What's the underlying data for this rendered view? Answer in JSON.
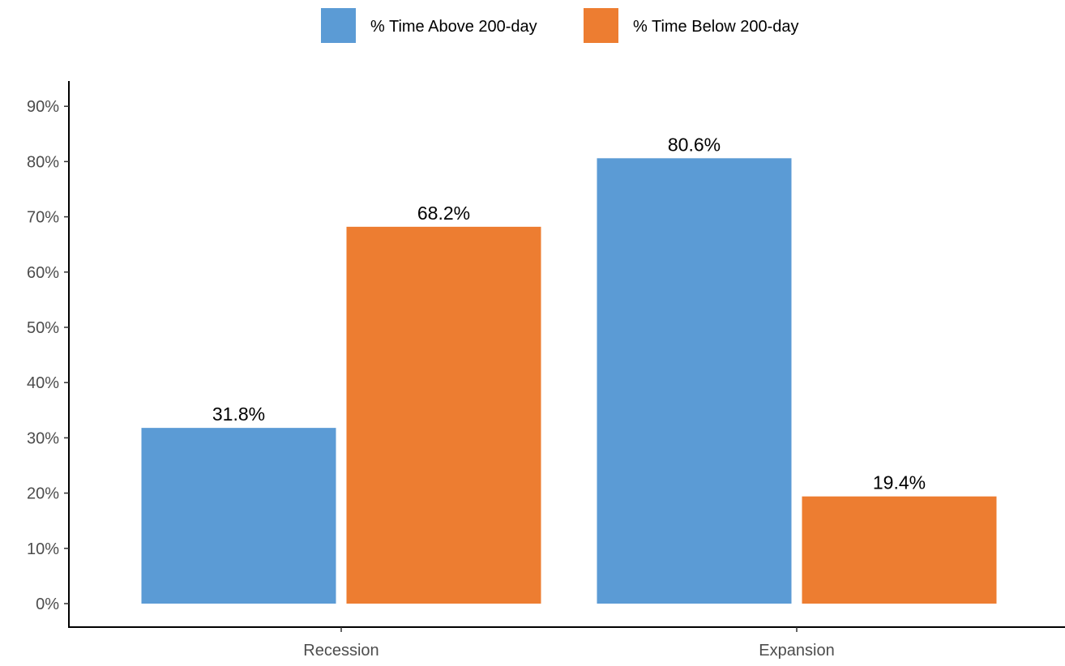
{
  "chart_data": {
    "type": "bar",
    "categories": [
      "Recession",
      "Expansion"
    ],
    "series": [
      {
        "name": "% Time Above 200-day",
        "values": [
          31.8,
          80.6
        ],
        "color": "#5b9bd5"
      },
      {
        "name": "% Time Below 200-day",
        "values": [
          68.2,
          19.4
        ],
        "color": "#ed7d31"
      }
    ],
    "data_labels": [
      [
        "31.8%",
        "80.6%"
      ],
      [
        "68.2%",
        "19.4%"
      ]
    ],
    "ylim": [
      0,
      90
    ],
    "yticks": [
      0,
      10,
      20,
      30,
      40,
      50,
      60,
      70,
      80,
      90
    ],
    "ytick_labels": [
      "0%",
      "10%",
      "20%",
      "30%",
      "40%",
      "50%",
      "60%",
      "70%",
      "80%",
      "90%"
    ],
    "xlabel": "",
    "ylabel": "",
    "title": "",
    "grid": false,
    "legend_position": "top"
  }
}
